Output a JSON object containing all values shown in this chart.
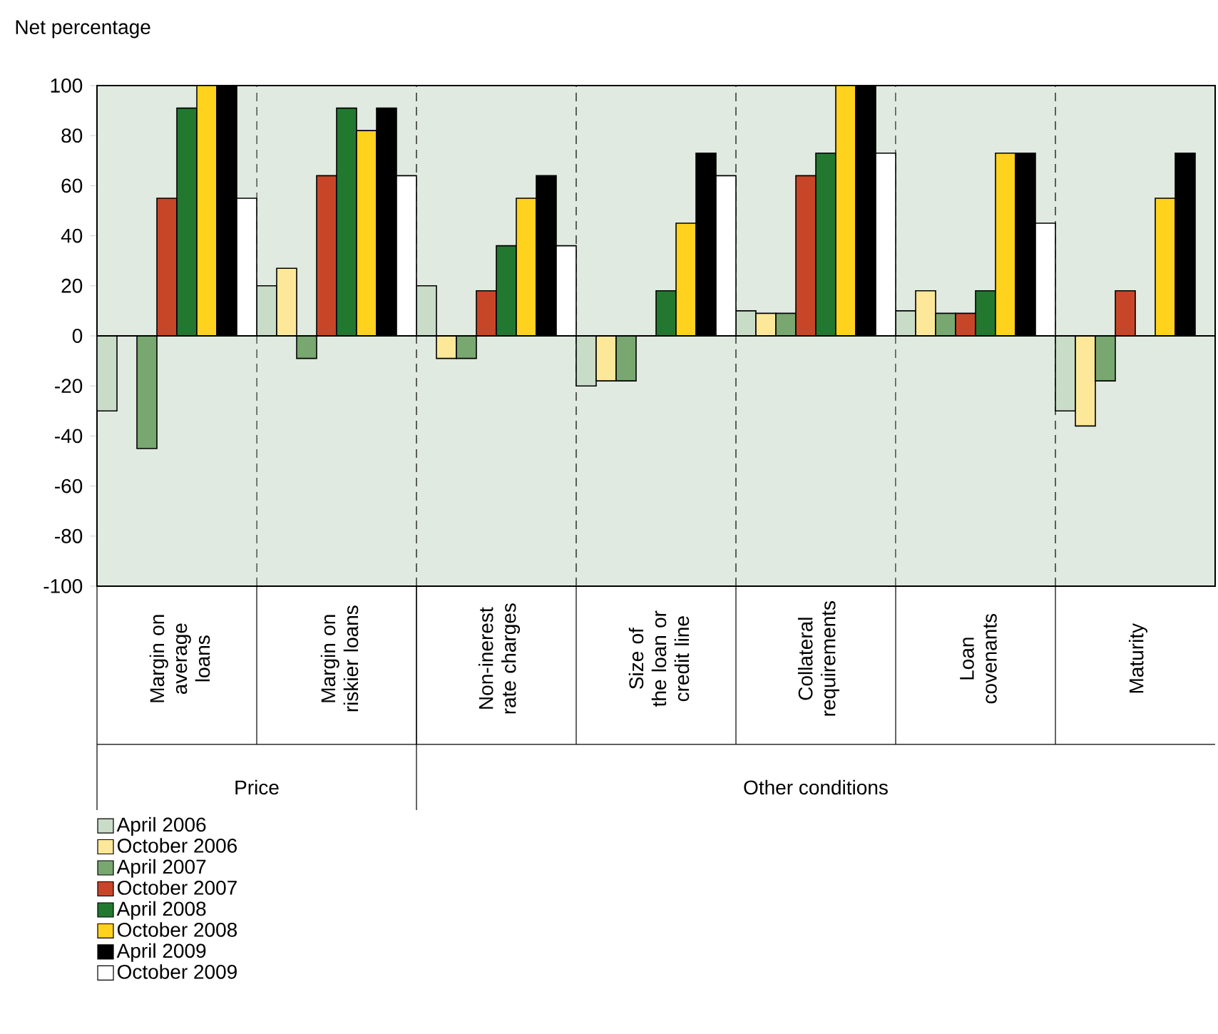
{
  "chart_data": {
    "type": "bar",
    "ylabel": "Net percentage",
    "categories": [
      "Margin on average loans",
      "Margin on riskier loans",
      "Non-inerest rate charges",
      "Size of the loan or credit line",
      "Collateral requirements",
      "Loan covenants",
      "Maturity"
    ],
    "series": [
      {
        "name": "April 2006",
        "color": "#c8dcc8",
        "values": [
          -30,
          20,
          20,
          -20,
          10,
          10,
          -30
        ]
      },
      {
        "name": "October 2006",
        "color": "#fde89a",
        "values": [
          null,
          27,
          -9,
          -18,
          9,
          18,
          -36
        ]
      },
      {
        "name": "April 2007",
        "color": "#78a870",
        "values": [
          -45,
          -9,
          -9,
          -18,
          9,
          9,
          -18
        ]
      },
      {
        "name": "October 2007",
        "color": "#c84628",
        "values": [
          55,
          64,
          18,
          null,
          64,
          9,
          18
        ]
      },
      {
        "name": "April 2008",
        "color": "#237830",
        "values": [
          91,
          91,
          36,
          18,
          73,
          18,
          null
        ]
      },
      {
        "name": "October 2008",
        "color": "#ffd21e",
        "values": [
          100,
          82,
          55,
          45,
          100,
          73,
          55
        ]
      },
      {
        "name": "April 2009",
        "color": "#000000",
        "values": [
          100,
          91,
          64,
          73,
          100,
          73,
          73
        ]
      },
      {
        "name": "October 2009",
        "color": "#ffffff",
        "values": [
          55,
          64,
          36,
          64,
          73,
          45,
          null
        ]
      }
    ],
    "ylim": [
      -100,
      100
    ],
    "yticks": [
      -100,
      -80,
      -60,
      -40,
      -20,
      0,
      20,
      40,
      60,
      80,
      100
    ],
    "legend": "bottom left",
    "annotations": [
      "Price",
      "Other conditions"
    ]
  }
}
